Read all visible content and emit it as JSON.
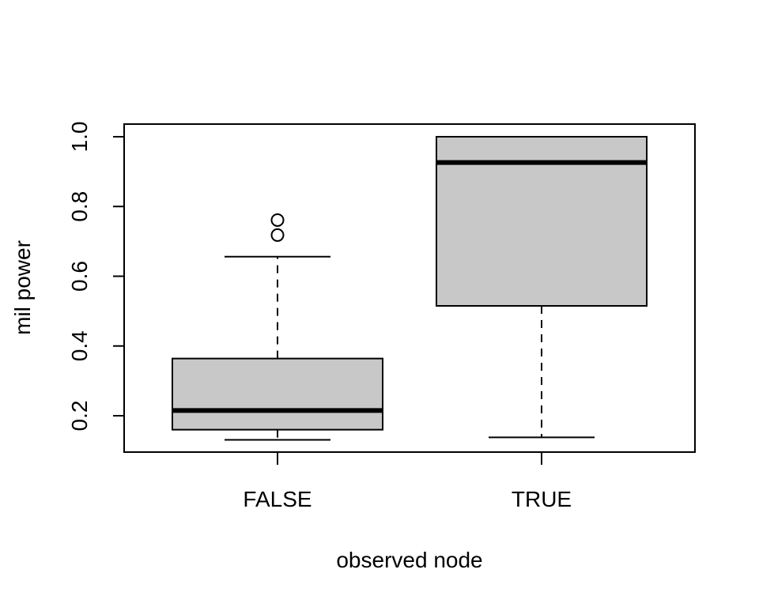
{
  "chart_data": {
    "type": "box",
    "title": "",
    "xlabel": "observed node",
    "ylabel": "mil power",
    "categories": [
      "FALSE",
      "TRUE"
    ],
    "ylim": [
      0.1,
      1.04
    ],
    "yticks": [
      "0.2",
      "0.4",
      "0.6",
      "0.8",
      "1.0"
    ],
    "grid": false,
    "legend": "none",
    "box_fill": "#c8c8c8",
    "boxes": [
      {
        "category": "FALSE",
        "whisker_low": 0.131,
        "q1": 0.16,
        "median": 0.215,
        "q3": 0.364,
        "whisker_high": 0.656,
        "outliers": [
          0.718,
          0.761
        ]
      },
      {
        "category": "TRUE",
        "whisker_low": 0.138,
        "q1": 0.515,
        "median": 0.926,
        "q3": 1.0,
        "whisker_high": 1.0,
        "outliers": []
      }
    ]
  }
}
